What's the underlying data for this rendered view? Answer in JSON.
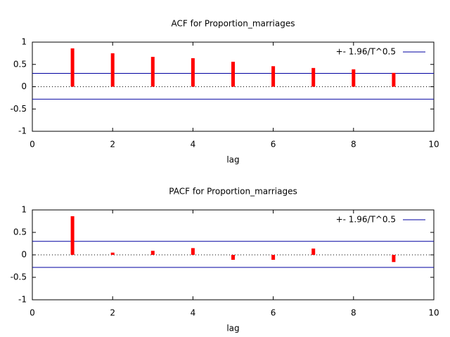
{
  "chart_data": [
    {
      "type": "bar",
      "title": "ACF for Proportion_marriages",
      "x_label": "lag",
      "x": [
        1,
        2,
        3,
        4,
        5,
        6,
        7,
        8,
        9
      ],
      "values": [
        0.86,
        0.75,
        0.67,
        0.64,
        0.56,
        0.46,
        0.42,
        0.39,
        0.31
      ],
      "color": "#ff0000",
      "bounds": {
        "name": "+- 1.96/T^0.5",
        "color": "#0000a0",
        "values": [
          0.3,
          -0.28
        ]
      },
      "xlim": [
        0,
        10
      ],
      "xticks": [
        0,
        2,
        4,
        6,
        8,
        10
      ],
      "ylim": [
        -1,
        1
      ],
      "yticks": [
        -1,
        -0.5,
        0,
        0.5,
        1
      ]
    },
    {
      "type": "bar",
      "title": "PACF for Proportion_marriages",
      "x_label": "lag",
      "x": [
        1,
        2,
        3,
        4,
        5,
        6,
        7,
        8,
        9
      ],
      "values": [
        0.86,
        0.05,
        0.09,
        0.15,
        -0.11,
        -0.11,
        0.14,
        0.0,
        -0.16
      ],
      "color": "#ff0000",
      "bounds": {
        "name": "+- 1.96/T^0.5",
        "color": "#0000a0",
        "values": [
          0.3,
          -0.28
        ]
      },
      "xlim": [
        0,
        10
      ],
      "xticks": [
        0,
        2,
        4,
        6,
        8,
        10
      ],
      "ylim": [
        -1,
        1
      ],
      "yticks": [
        -1,
        -0.5,
        0,
        0.5,
        1
      ]
    }
  ]
}
